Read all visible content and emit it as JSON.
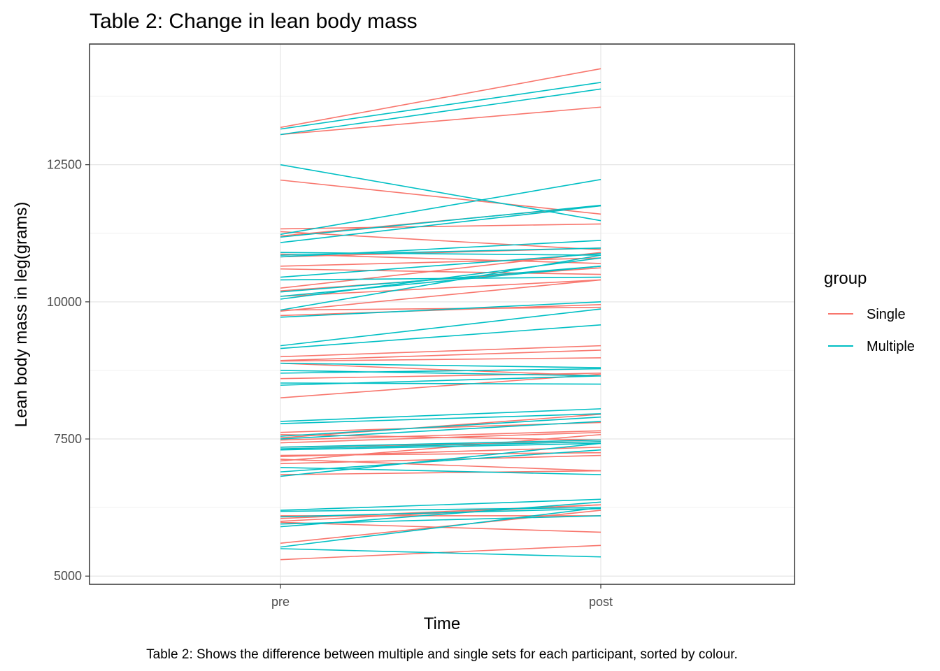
{
  "chart_data": {
    "type": "line",
    "title": "Table 2: Change in lean body mass",
    "caption": "Table 2: Shows the difference between multiple and single sets for each participant, sorted by colour.",
    "xlabel": "Time",
    "ylabel": "Lean body mass in leg(grams)",
    "categories": [
      "pre",
      "post"
    ],
    "ylim": [
      4850,
      14700
    ],
    "yticks": [
      5000,
      7500,
      10000,
      12500
    ],
    "grid": true,
    "legend": {
      "title": "group",
      "position": "right",
      "entries": [
        {
          "name": "Single",
          "color": "#F8766D"
        },
        {
          "name": "Multiple",
          "color": "#00BFC4"
        }
      ]
    },
    "series": [
      {
        "name": "Single",
        "color": "#F8766D",
        "participants": [
          [
            13180,
            14250
          ],
          [
            13050,
            13550
          ],
          [
            12220,
            11600
          ],
          [
            11330,
            11420
          ],
          [
            11280,
            10950
          ],
          [
            11200,
            11750
          ],
          [
            10870,
            10700
          ],
          [
            10820,
            10980
          ],
          [
            10650,
            10800
          ],
          [
            10600,
            10500
          ],
          [
            10250,
            10900
          ],
          [
            10200,
            10620
          ],
          [
            10100,
            10400
          ],
          [
            9830,
            10400
          ],
          [
            9750,
            9950
          ],
          [
            9850,
            9900
          ],
          [
            9000,
            9200
          ],
          [
            8930,
            9120
          ],
          [
            8920,
            8980
          ],
          [
            8880,
            8650
          ],
          [
            8600,
            8700
          ],
          [
            8250,
            8680
          ],
          [
            7620,
            7800
          ],
          [
            7580,
            7480
          ],
          [
            7520,
            7950
          ],
          [
            7480,
            7650
          ],
          [
            7430,
            7620
          ],
          [
            7350,
            7450
          ],
          [
            7200,
            7250
          ],
          [
            7180,
            7350
          ],
          [
            7130,
            6920
          ],
          [
            7100,
            7580
          ],
          [
            7050,
            7200
          ],
          [
            6850,
            6920
          ],
          [
            6100,
            6100
          ],
          [
            6050,
            6300
          ],
          [
            6000,
            6300
          ],
          [
            5980,
            5800
          ],
          [
            5600,
            6200
          ],
          [
            5300,
            5560
          ]
        ]
      },
      {
        "name": "Multiple",
        "color": "#00BFC4",
        "participants": [
          [
            13150,
            14000
          ],
          [
            13050,
            13880
          ],
          [
            12500,
            11480
          ],
          [
            11230,
            12230
          ],
          [
            11180,
            11760
          ],
          [
            11080,
            11750
          ],
          [
            10900,
            10850
          ],
          [
            10850,
            10980
          ],
          [
            10820,
            11120
          ],
          [
            10450,
            10880
          ],
          [
            10400,
            10450
          ],
          [
            10180,
            10650
          ],
          [
            10100,
            10650
          ],
          [
            10050,
            10800
          ],
          [
            9850,
            10850
          ],
          [
            9720,
            10000
          ],
          [
            9200,
            9870
          ],
          [
            9150,
            9580
          ],
          [
            8880,
            8800
          ],
          [
            8750,
            8650
          ],
          [
            8700,
            8780
          ],
          [
            8520,
            8500
          ],
          [
            8480,
            8650
          ],
          [
            7820,
            8050
          ],
          [
            7780,
            7960
          ],
          [
            7550,
            7900
          ],
          [
            7500,
            7820
          ],
          [
            7350,
            7480
          ],
          [
            7320,
            7450
          ],
          [
            7300,
            7420
          ],
          [
            6980,
            6850
          ],
          [
            6900,
            7300
          ],
          [
            6820,
            7420
          ],
          [
            6200,
            6400
          ],
          [
            6180,
            6250
          ],
          [
            6080,
            6230
          ],
          [
            5950,
            6100
          ],
          [
            5900,
            6350
          ],
          [
            5530,
            6250
          ],
          [
            5500,
            5350
          ]
        ]
      }
    ]
  }
}
